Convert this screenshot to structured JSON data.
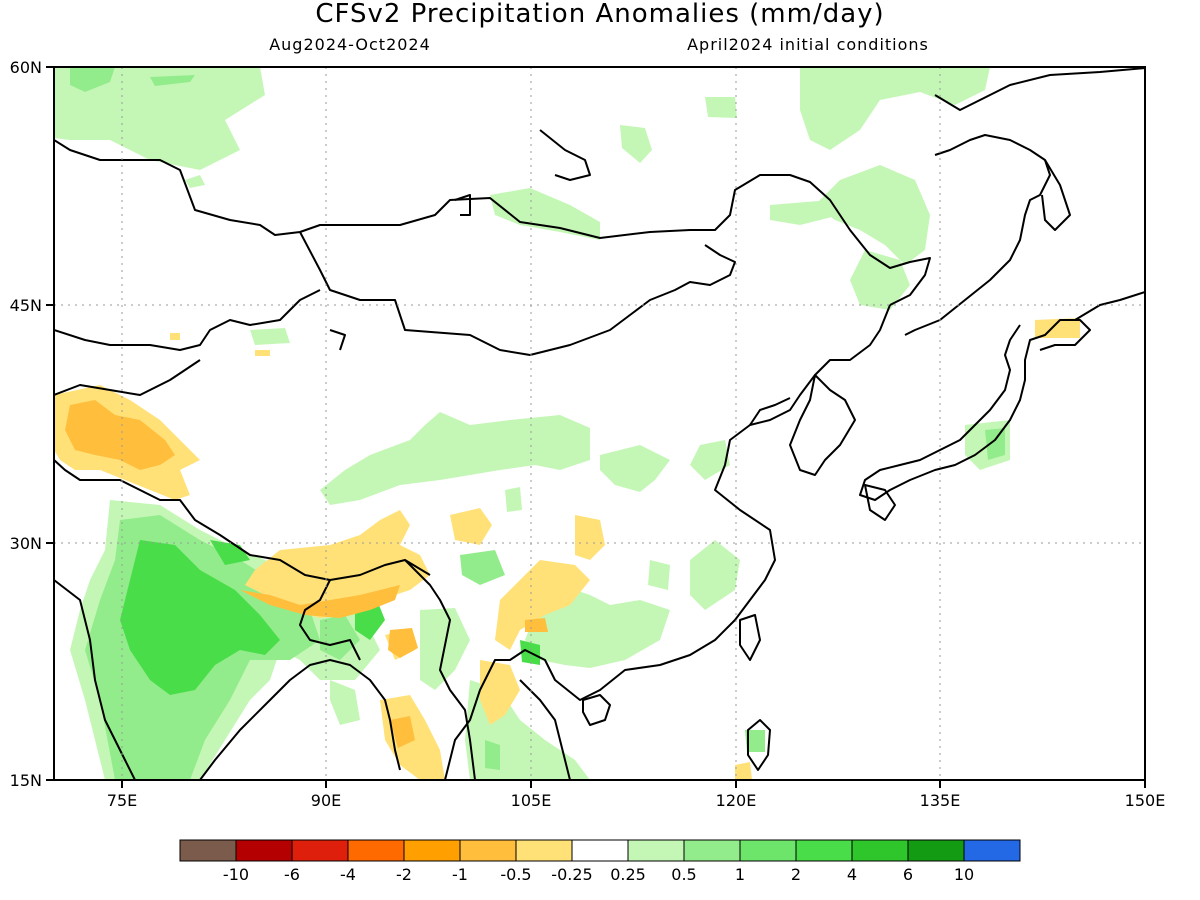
{
  "title": "CFSv2 Precipitation Anomalies (mm/day)",
  "subtitle_left": "Aug2024-Oct2024",
  "subtitle_right": "April2024 initial conditions",
  "map": {
    "lon_range": [
      70,
      150
    ],
    "lat_range": [
      15,
      60
    ],
    "lon_ticks": [
      "75E",
      "90E",
      "105E",
      "120E",
      "135E",
      "150E"
    ],
    "lat_ticks": [
      "15N",
      "30N",
      "45N",
      "60N"
    ],
    "grid": true
  },
  "colorbar": {
    "colors": [
      "#7b5b4c",
      "#b40000",
      "#dd1f0b",
      "#ff6a00",
      "#ff9f00",
      "#ffbe3c",
      "#ffe178",
      "#ffffff",
      "#c4f7b6",
      "#93ec8b",
      "#6ce56a",
      "#49dd49",
      "#2fc62c",
      "#139b13",
      "#2369e6"
    ],
    "labels": [
      "-10",
      "-6",
      "-4",
      "-2",
      "-1",
      "-0.5",
      "-0.25",
      "0.25",
      "0.5",
      "1",
      "2",
      "4",
      "6",
      "10"
    ]
  }
}
